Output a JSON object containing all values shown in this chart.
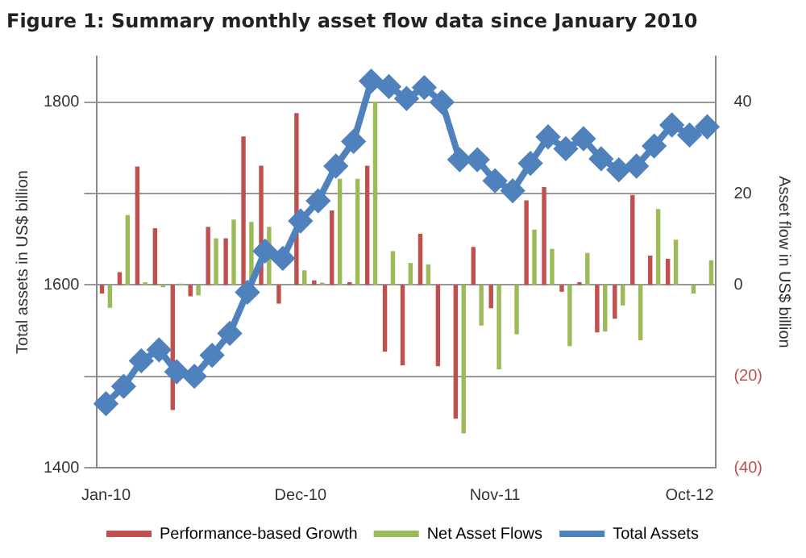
{
  "chart_data": {
    "type": "bar",
    "title": "Figure 1: Summary monthly asset flow data since January 2010",
    "ylabel": "Total assets in US$ billion",
    "y2label": "Asset flow in US$ billion",
    "categories": [
      "Jan-10",
      null,
      null,
      null,
      null,
      null,
      null,
      null,
      null,
      null,
      null,
      "Dec-10",
      null,
      null,
      null,
      null,
      null,
      null,
      null,
      null,
      null,
      null,
      "Nov-11",
      null,
      null,
      null,
      null,
      null,
      null,
      null,
      null,
      null,
      null,
      "Oct-12",
      null
    ],
    "series": [
      {
        "name": "Performance-based Growth",
        "color": "#c0504d",
        "axis": "y2",
        "values": [
          -1.9,
          2.8,
          25.9,
          12.4,
          -27.4,
          -2.5,
          12.7,
          10.2,
          32.5,
          26.1,
          -4.1,
          37.6,
          1.0,
          16.3,
          0.6,
          26.1,
          -14.6,
          -17.6,
          11.2,
          -17.8,
          -29.3,
          8.3,
          -5.1,
          0,
          18.5,
          21.4,
          -1.5,
          0.6,
          -10.4,
          -7.4,
          19.7,
          6.4,
          5.7,
          0,
          0
        ]
      },
      {
        "name": "Net Asset Flows",
        "color": "#9bbb59",
        "axis": "y2",
        "values": [
          -5,
          15.3,
          0.6,
          -0.5,
          0.3,
          -2.3,
          10.2,
          14.3,
          13.8,
          12.7,
          0,
          3.2,
          0.5,
          23.2,
          23.2,
          40.1,
          7.4,
          4.8,
          4.5,
          0,
          -32.5,
          -8.9,
          -18.5,
          -10.8,
          12.1,
          7.9,
          -13.4,
          7.0,
          -10.2,
          -4.5,
          -12.1,
          16.6,
          9.9,
          -1.9,
          5.4
        ]
      },
      {
        "name": "Total Assets",
        "color": "#4f81bd",
        "type": "line",
        "axis": "y",
        "marker": "diamond",
        "values": [
          1470,
          1489,
          1517,
          1529,
          1505,
          1500,
          1523,
          1547,
          1592,
          1637,
          1629,
          1670,
          1692,
          1730,
          1757,
          1823,
          1817,
          1804,
          1816,
          1800,
          1737,
          1737,
          1714,
          1703,
          1733,
          1762,
          1749,
          1760,
          1738,
          1726,
          1730,
          1752,
          1775,
          1764,
          1773
        ]
      }
    ],
    "ylim": [
      1400,
      1850
    ],
    "yticks": [
      1400,
      {
        "value": 1500,
        "label": null
      },
      1600,
      {
        "value": 1700,
        "label": null
      },
      1800
    ],
    "y2lim": [
      -40,
      50
    ],
    "y2ticks": [
      {
        "value": -40,
        "label": "(40)"
      },
      {
        "value": -20,
        "label": "(20)"
      },
      0,
      20,
      40
    ],
    "grid": "y",
    "legend": "bottom"
  }
}
